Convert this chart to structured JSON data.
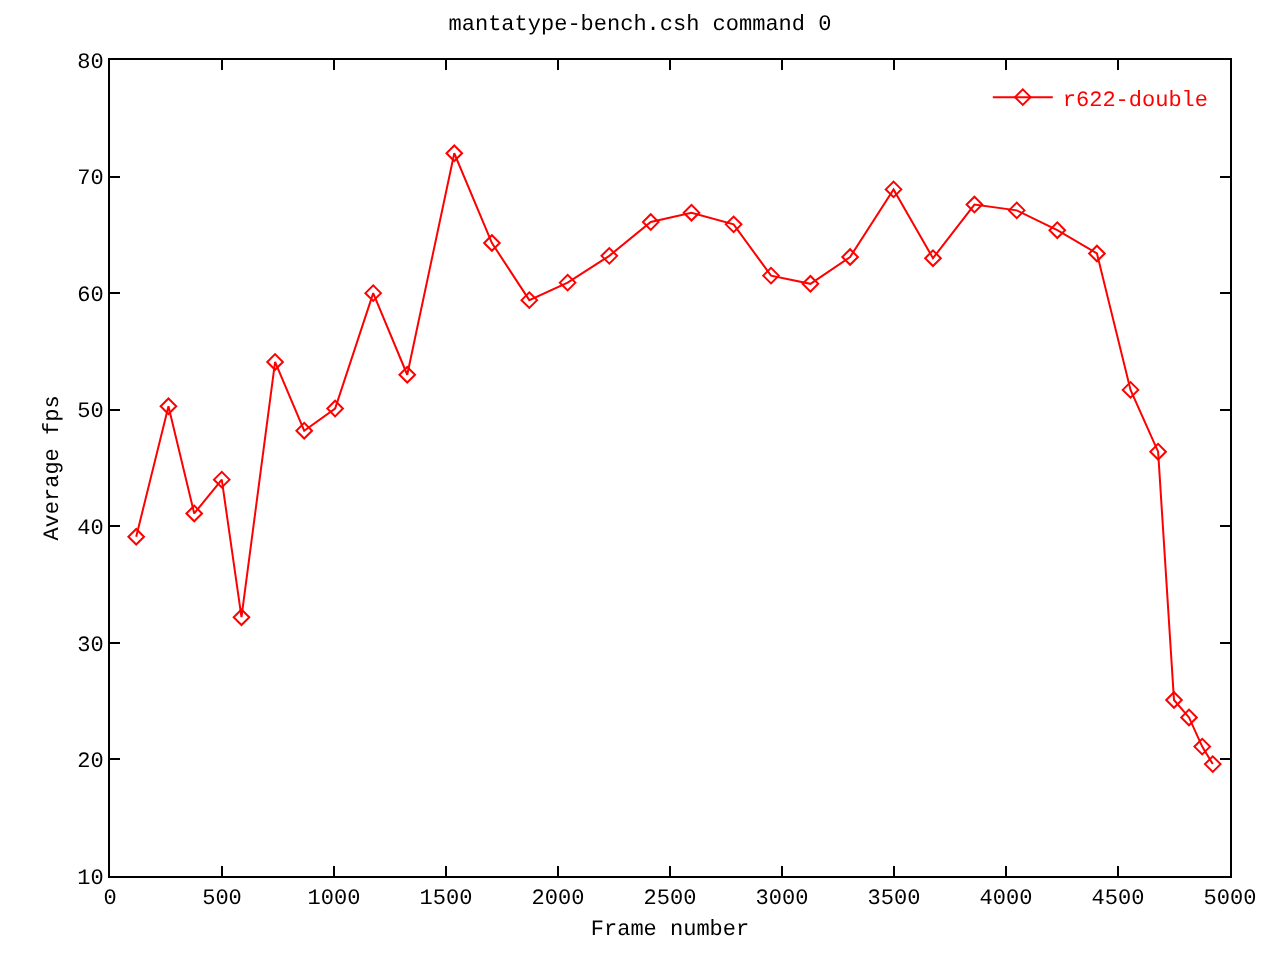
{
  "chart_data": {
    "type": "line",
    "title": "mantatype-bench.csh command 0",
    "xlabel": "Frame number",
    "ylabel": "Average fps",
    "xlim": [
      0,
      5000
    ],
    "xticks": [
      0,
      500,
      1000,
      1500,
      2000,
      2500,
      3000,
      3500,
      4000,
      4500,
      5000
    ],
    "ylim": [
      10,
      80
    ],
    "yticks": [
      10,
      20,
      30,
      40,
      50,
      60,
      70,
      80
    ],
    "legend": "top right",
    "marker": "diamond",
    "line_style": "solid",
    "series": [
      {
        "name": "r622-double",
        "color": "#ff0000",
        "x": [
          117,
          261,
          376,
          499,
          587,
          737,
          867,
          1005,
          1175,
          1327,
          1537,
          1705,
          1872,
          2043,
          2229,
          2414,
          2596,
          2784,
          2951,
          3127,
          3304,
          3498,
          3674,
          3859,
          4048,
          4229,
          4406,
          4556,
          4679,
          4750,
          4817,
          4876,
          4923
        ],
        "values": [
          39.1,
          50.3,
          41.1,
          44.0,
          32.2,
          54.1,
          48.2,
          50.1,
          60.0,
          53.0,
          72.0,
          64.3,
          59.4,
          60.9,
          63.2,
          66.1,
          66.9,
          65.9,
          61.5,
          60.8,
          63.1,
          68.9,
          63.0,
          67.6,
          67.1,
          65.4,
          63.4,
          51.7,
          46.4,
          25.1,
          23.6,
          21.1,
          19.6
        ]
      }
    ]
  }
}
